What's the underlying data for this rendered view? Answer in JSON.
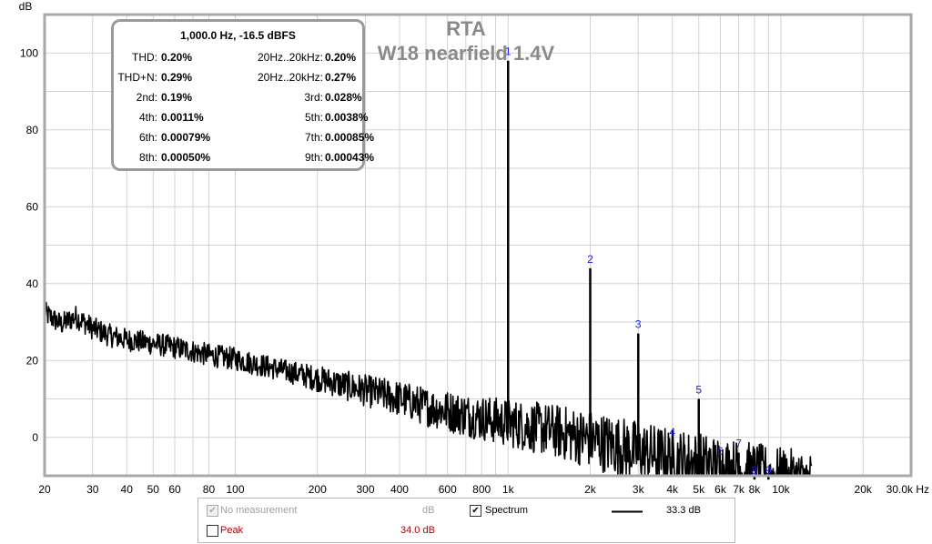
{
  "chart_data": {
    "type": "line",
    "title": "RTA",
    "subtitle": "W18 nearfield 1.4V",
    "ylabel": "dB",
    "xlabel": "Hz",
    "xscale": "log",
    "xlim": [
      20,
      30000
    ],
    "ylim": [
      -10,
      110
    ],
    "grid": true,
    "y_ticks": [
      0,
      20,
      40,
      60,
      80,
      100
    ],
    "x_ticks": [
      20,
      30,
      40,
      50,
      60,
      70,
      80,
      100,
      200,
      300,
      400,
      500,
      600,
      700,
      800,
      900,
      1000,
      2000,
      3000,
      4000,
      5000,
      6000,
      7000,
      8000,
      9000,
      10000,
      20000,
      30000
    ],
    "x_tick_labels": [
      {
        "x": 20,
        "label": "20"
      },
      {
        "x": 30,
        "label": "30"
      },
      {
        "x": 40,
        "label": "40"
      },
      {
        "x": 50,
        "label": "50"
      },
      {
        "x": 60,
        "label": "60"
      },
      {
        "x": 80,
        "label": "80"
      },
      {
        "x": 100,
        "label": "100"
      },
      {
        "x": 200,
        "label": "200"
      },
      {
        "x": 300,
        "label": "300"
      },
      {
        "x": 400,
        "label": "400"
      },
      {
        "x": 600,
        "label": "600"
      },
      {
        "x": 800,
        "label": "800"
      },
      {
        "x": 1000,
        "label": "1k"
      },
      {
        "x": 2000,
        "label": "2k"
      },
      {
        "x": 3000,
        "label": "3k"
      },
      {
        "x": 4000,
        "label": "4k"
      },
      {
        "x": 5000,
        "label": "5k"
      },
      {
        "x": 6000,
        "label": "6k"
      },
      {
        "x": 7000,
        "label": "7k"
      },
      {
        "x": 8000,
        "label": "8k"
      },
      {
        "x": 10000,
        "label": "10k"
      },
      {
        "x": 20000,
        "label": "20k"
      },
      {
        "x": 30000,
        "label": "30.0k Hz"
      }
    ],
    "series": [
      {
        "name": "Spectrum",
        "color": "#000000",
        "noise_floor": [
          [
            20,
            33
          ],
          [
            23,
            30
          ],
          [
            26,
            32
          ],
          [
            30,
            29
          ],
          [
            35,
            27
          ],
          [
            40,
            26
          ],
          [
            50,
            25
          ],
          [
            60,
            24
          ],
          [
            70,
            23
          ],
          [
            80,
            22
          ],
          [
            100,
            21
          ],
          [
            150,
            18
          ],
          [
            200,
            16
          ],
          [
            300,
            13
          ],
          [
            400,
            11
          ],
          [
            500,
            9
          ],
          [
            700,
            7
          ],
          [
            1000,
            5
          ],
          [
            1500,
            3
          ],
          [
            2000,
            1
          ],
          [
            3000,
            -2
          ],
          [
            4000,
            -4
          ],
          [
            5000,
            -5
          ],
          [
            7000,
            -7
          ],
          [
            10000,
            -9
          ],
          [
            13000,
            -10
          ]
        ],
        "harmonic_peaks": [
          {
            "n": "1",
            "freq": 1000,
            "db": 98
          },
          {
            "n": "2",
            "freq": 2000,
            "db": 44
          },
          {
            "n": "3",
            "freq": 3000,
            "db": 27
          },
          {
            "n": "4",
            "freq": 4000,
            "db": -1
          },
          {
            "n": "5",
            "freq": 5000,
            "db": 10
          },
          {
            "n": "6",
            "freq": 6000,
            "db": -6
          },
          {
            "n": "7",
            "freq": 7000,
            "db": -4
          },
          {
            "n": "8",
            "freq": 8000,
            "db": -11
          },
          {
            "n": "9",
            "freq": 9000,
            "db": -11
          }
        ]
      }
    ]
  },
  "stats": {
    "header": "1,000.0 Hz, -16.5 dBFS",
    "rows": [
      {
        "l1": "THD:",
        "v1": "0.20%",
        "l2": "20Hz..20kHz:",
        "v2": "0.20%"
      },
      {
        "l1": "THD+N:",
        "v1": "0.29%",
        "l2": "20Hz..20kHz:",
        "v2": "0.27%"
      },
      {
        "l1": "2nd:",
        "v1": "0.19%",
        "l2": "3rd:",
        "v2": "0.028%"
      },
      {
        "l1": "4th:",
        "v1": "0.0011%",
        "l2": "5th:",
        "v2": "0.0038%"
      },
      {
        "l1": "6th:",
        "v1": "0.00079%",
        "l2": "7th:",
        "v2": "0.00085%"
      },
      {
        "l1": "8th:",
        "v1": "0.00050%",
        "l2": "9th:",
        "v2": "0.00043%"
      }
    ]
  },
  "legend": {
    "no_measurement_label": "No measurement",
    "no_measurement_unit": "dB",
    "no_measurement_checked": true,
    "spectrum_label": "Spectrum",
    "spectrum_checked": true,
    "spectrum_value": "33.3 dB",
    "peak_label": "Peak",
    "peak_checked": false,
    "peak_value": "34.0 dB",
    "check_glyph": "✔",
    "colors": {
      "peak": "#b00000",
      "disabled": "#a0a0a0",
      "spectrum_line": "#000000"
    }
  }
}
